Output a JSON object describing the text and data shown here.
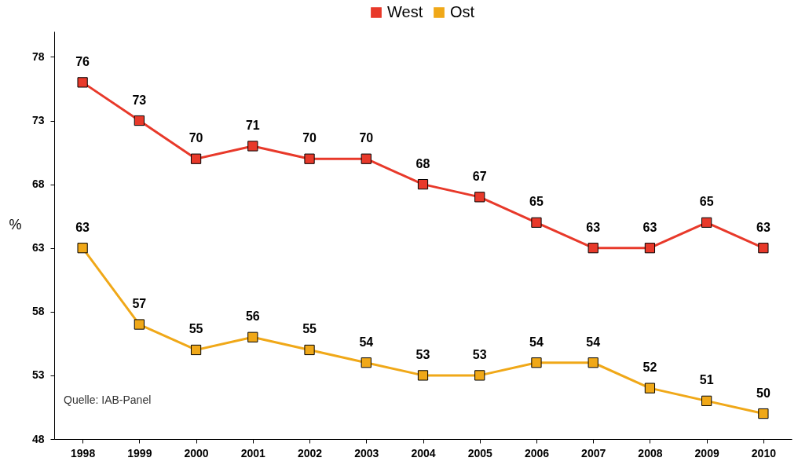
{
  "chart_data": {
    "type": "line",
    "ylabel": "%",
    "categories": [
      "1998",
      "1999",
      "2000",
      "2001",
      "2002",
      "2003",
      "2004",
      "2005",
      "2006",
      "2007",
      "2008",
      "2009",
      "2010"
    ],
    "series": [
      {
        "name": "West",
        "color": "#e8392a",
        "values": [
          76,
          73,
          70,
          71,
          70,
          70,
          68,
          67,
          65,
          63,
          63,
          65,
          63
        ]
      },
      {
        "name": "Ost",
        "color": "#f0a818",
        "values": [
          63,
          57,
          55,
          56,
          55,
          54,
          53,
          53,
          54,
          54,
          52,
          51,
          50
        ]
      }
    ],
    "ylim": [
      48,
      80
    ],
    "yticks": [
      48,
      53,
      58,
      63,
      68,
      73,
      78
    ],
    "data_labels": true,
    "marker": "square",
    "line_style": "solid",
    "grid": false,
    "legend": "top",
    "annotations": [
      "Quelle: IAB-Panel"
    ]
  }
}
